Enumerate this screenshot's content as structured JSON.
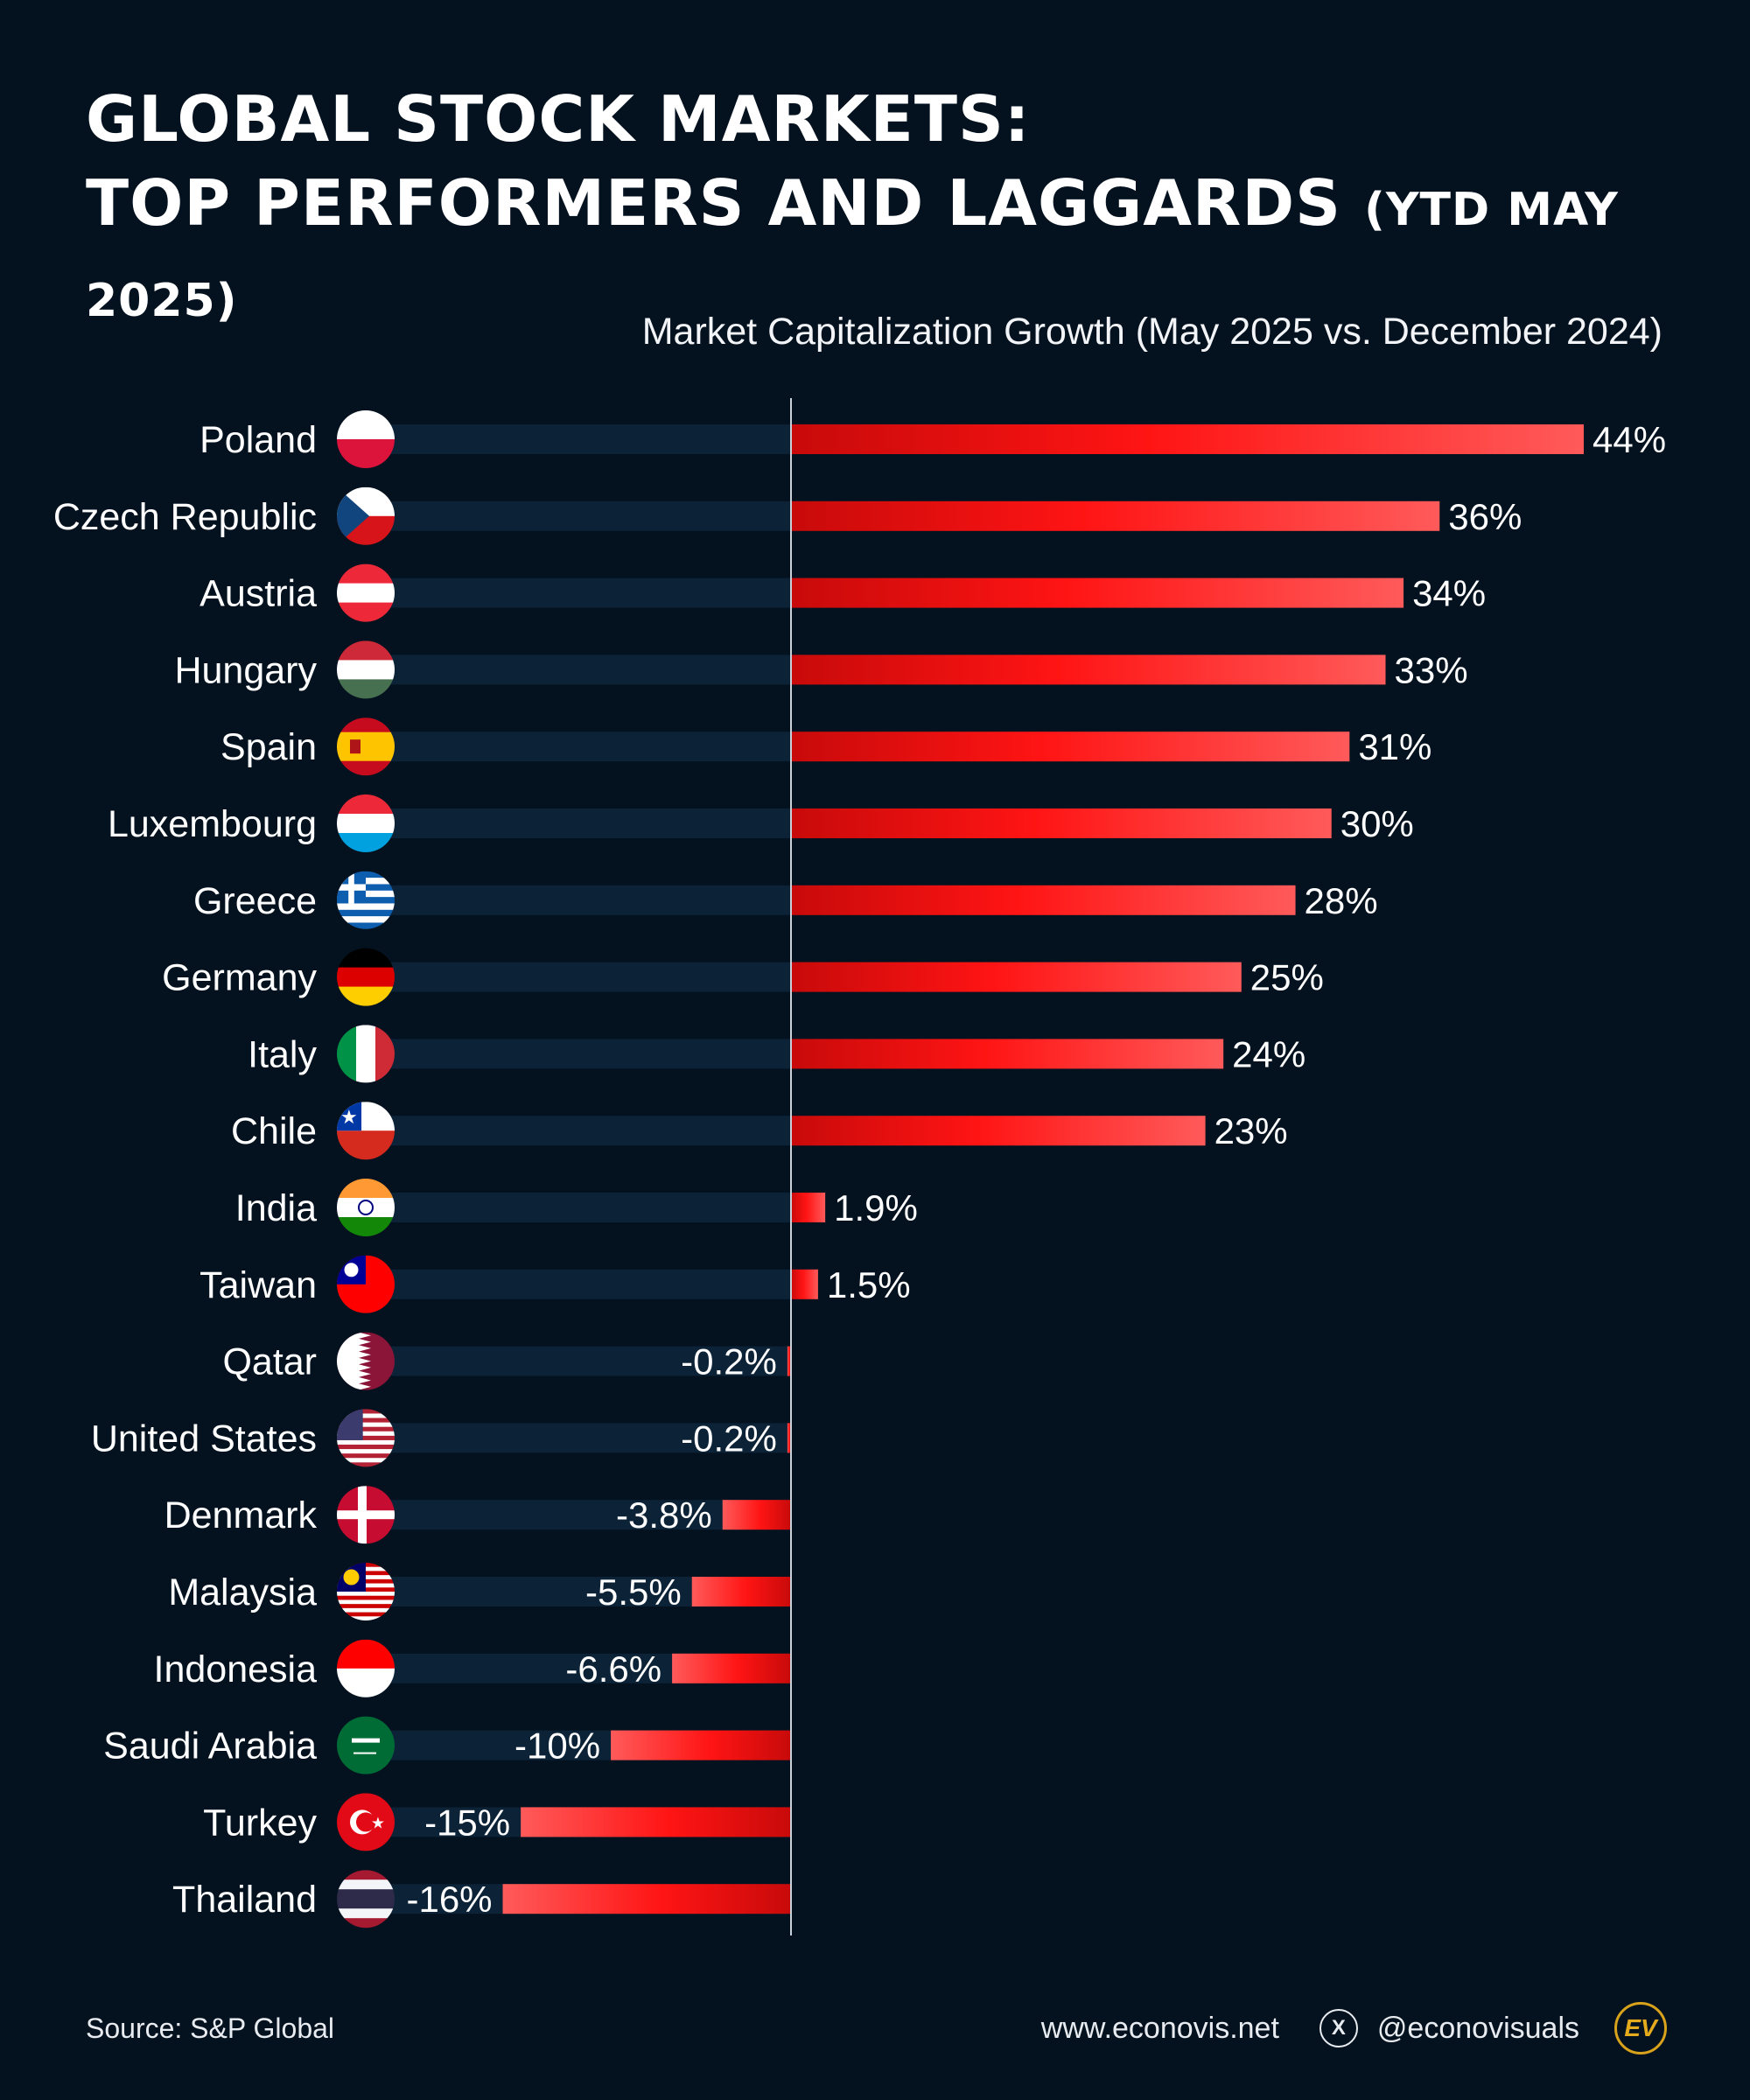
{
  "title": {
    "line1": "GLOBAL STOCK MARKETS:",
    "line2": "TOP PERFORMERS AND LAGGARDS",
    "period": "(YTD MAY 2025)"
  },
  "chart_data": {
    "type": "bar",
    "orientation": "horizontal",
    "title": "Market Capitalization Growth (May 2025 vs. December 2024)",
    "unit": "%",
    "categories": [
      "Poland",
      "Czech Republic",
      "Austria",
      "Hungary",
      "Spain",
      "Luxembourg",
      "Greece",
      "Germany",
      "Italy",
      "Chile",
      "India",
      "Taiwan",
      "Qatar",
      "United States",
      "Denmark",
      "Malaysia",
      "Indonesia",
      "Saudi Arabia",
      "Turkey",
      "Thailand"
    ],
    "values": [
      44,
      36,
      34,
      33,
      31,
      30,
      28,
      25,
      24,
      23,
      1.9,
      1.5,
      -0.2,
      -0.2,
      -3.8,
      -5.5,
      -6.6,
      -10,
      -15,
      -16
    ],
    "labels": [
      "44%",
      "36%",
      "34%",
      "33%",
      "31%",
      "30%",
      "28%",
      "25%",
      "24%",
      "23%",
      "1.9%",
      "1.5%",
      "-0.2%",
      "-0.2%",
      "-3.8%",
      "-5.5%",
      "-6.6%",
      "-10%",
      "-15%",
      "-16%"
    ],
    "flags": [
      "poland-flag-icon",
      "czech-republic-flag-icon",
      "austria-flag-icon",
      "hungary-flag-icon",
      "spain-flag-icon",
      "luxembourg-flag-icon",
      "greece-flag-icon",
      "germany-flag-icon",
      "italy-flag-icon",
      "chile-flag-icon",
      "india-flag-icon",
      "taiwan-flag-icon",
      "qatar-flag-icon",
      "united-states-flag-icon",
      "denmark-flag-icon",
      "malaysia-flag-icon",
      "indonesia-flag-icon",
      "saudi-arabia-flag-icon",
      "turkey-flag-icon",
      "thailand-flag-icon"
    ],
    "xlim": [
      -22,
      44
    ],
    "bar_color_start": "#c80a0a",
    "bar_color_end": "#ff5a5a",
    "track_color": "#0c2236",
    "grid": false,
    "legend": "none"
  },
  "footer": {
    "source": "Source: S&P Global",
    "website": "www.econovis.net",
    "handle": "@econovisuals",
    "logo_text": "EV"
  }
}
